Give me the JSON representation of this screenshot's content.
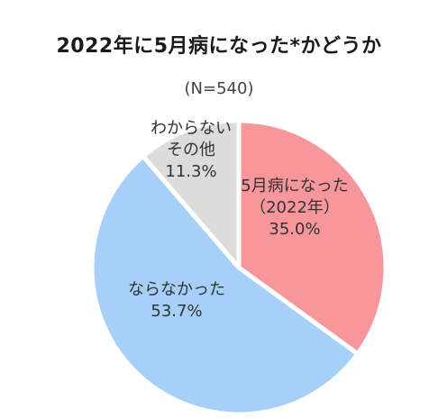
{
  "chart_data": {
    "type": "pie",
    "title": "2022年に5月病になった*かどうか",
    "subtitle": "(N=540)",
    "slices": [
      {
        "label_lines": [
          "5月病になった",
          "（2022年）"
        ],
        "value": 35.0,
        "value_text": "35.0%",
        "color": "#f7969b"
      },
      {
        "label_lines": [
          "ならなかった"
        ],
        "value": 53.7,
        "value_text": "53.7%",
        "color": "#a6d0f7"
      },
      {
        "label_lines": [
          "わからない",
          "その他"
        ],
        "value": 11.3,
        "value_text": "11.3%",
        "color": "#dcdcdc"
      }
    ]
  }
}
